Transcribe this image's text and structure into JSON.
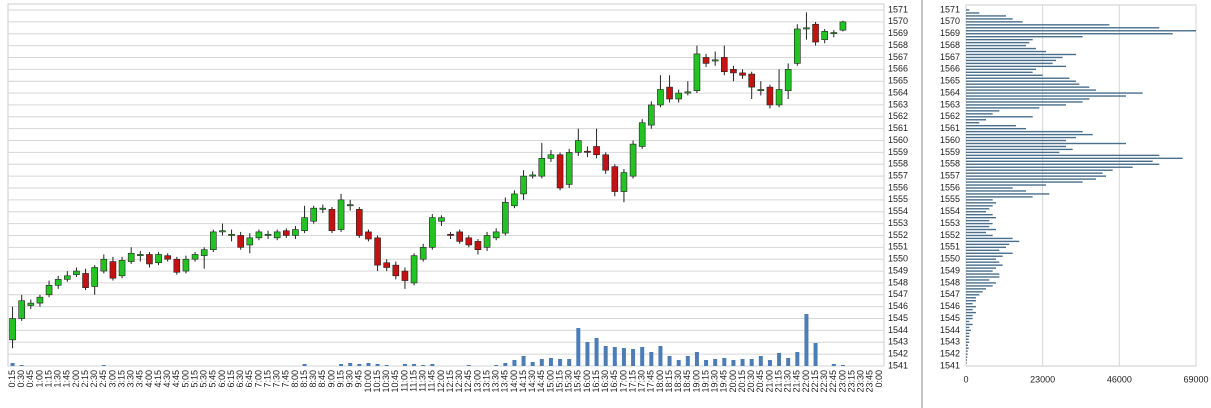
{
  "chart_data": [
    {
      "type": "candlestick",
      "categories": [
        "0:15",
        "0:30",
        "0:45",
        "1:00",
        "1:15",
        "1:30",
        "1:45",
        "2:00",
        "2:15",
        "2:30",
        "2:45",
        "3:00",
        "3:15",
        "3:30",
        "3:45",
        "4:00",
        "4:15",
        "4:30",
        "4:45",
        "5:00",
        "5:15",
        "5:30",
        "5:45",
        "6:00",
        "6:15",
        "6:30",
        "6:45",
        "7:00",
        "7:15",
        "7:30",
        "7:45",
        "8:00",
        "8:15",
        "8:30",
        "8:45",
        "9:00",
        "9:15",
        "9:30",
        "9:45",
        "10:00",
        "10:15",
        "10:30",
        "10:45",
        "11:00",
        "11:15",
        "11:30",
        "11:45",
        "12:00",
        "12:15",
        "12:30",
        "12:45",
        "13:00",
        "13:15",
        "13:30",
        "13:45",
        "14:00",
        "14:15",
        "14:30",
        "14:45",
        "15:00",
        "15:15",
        "15:30",
        "15:45",
        "16:00",
        "16:15",
        "16:30",
        "16:45",
        "17:00",
        "17:15",
        "17:30",
        "17:45",
        "18:00",
        "18:15",
        "18:30",
        "18:45",
        "19:00",
        "19:15",
        "19:30",
        "19:45",
        "20:00",
        "20:15",
        "20:30",
        "20:45",
        "21:00",
        "21:15",
        "21:30",
        "21:45",
        "22:00",
        "22:15",
        "22:30",
        "22:45",
        "23:00",
        "23:15",
        "23:30",
        "23:45",
        "0:00"
      ],
      "open": [
        1543.2,
        1545,
        1546.1,
        1546.3,
        1547,
        1547.8,
        1548.3,
        1548.7,
        1548.8,
        1547.7,
        1549,
        1549.8,
        1548.6,
        1549.8,
        1550.3,
        1550.4,
        1549.7,
        1550.3,
        1550,
        1549,
        1550,
        1550.3,
        1550.8,
        1552.3,
        1552,
        1552,
        1551.2,
        1551.8,
        1552,
        1551.8,
        1552.4,
        1552,
        1552.4,
        1553.2,
        1554.2,
        1554.2,
        1552.5,
        1554.5,
        1554.2,
        1552.3,
        1551.8,
        1549.7,
        1549.5,
        1549,
        1548,
        1550,
        1551,
        1553.2,
        1552.1,
        1552.3,
        1551.8,
        1551.5,
        1551,
        1551.8,
        1552.2,
        1554.5,
        1555.5,
        1557,
        1557,
        1558.5,
        1558.8,
        1556.3,
        1559,
        1559.1,
        1559.5,
        1558.8,
        1557.8,
        1555.7,
        1557,
        1559.5,
        1561.3,
        1563,
        1564.5,
        1563.5,
        1564,
        1564.2,
        1567,
        1566.7,
        1567,
        1566,
        1565.7,
        1565.6,
        1564.2,
        1564.5,
        1563,
        1564.2,
        1566.5,
        1569.4,
        1569.8,
        1568.5,
        1569,
        1569.3,
        null,
        null,
        null,
        null
      ],
      "high": [
        1546,
        1547,
        1546.6,
        1547,
        1548.2,
        1548.6,
        1549,
        1549.3,
        1549.2,
        1549.5,
        1550.4,
        1550.2,
        1550.2,
        1551,
        1550.7,
        1550.6,
        1550.6,
        1550.5,
        1550.2,
        1550.3,
        1550.6,
        1551,
        1552.5,
        1553,
        1552.5,
        1552.3,
        1552.2,
        1552.5,
        1552.4,
        1552.5,
        1552.6,
        1552.8,
        1554.5,
        1554.5,
        1554.6,
        1554.4,
        1555.5,
        1555,
        1554.4,
        1552.5,
        1552,
        1550,
        1549.8,
        1549.3,
        1550.5,
        1551.3,
        1553.8,
        1553.7,
        1552.3,
        1552.5,
        1552,
        1551.7,
        1552.3,
        1552.6,
        1555.2,
        1555.8,
        1557.5,
        1557.4,
        1559.8,
        1559.2,
        1559,
        1559.3,
        1561,
        1559.5,
        1561,
        1559,
        1558,
        1557.6,
        1560,
        1561.8,
        1563.3,
        1565.5,
        1565.5,
        1564.3,
        1565,
        1568,
        1567.3,
        1567.5,
        1568,
        1566.3,
        1566,
        1565.8,
        1565,
        1564.7,
        1566,
        1566.5,
        1569.8,
        1570.8,
        1570,
        1569.4,
        1569.3,
        1570.1,
        null,
        null,
        null,
        null
      ],
      "low": [
        1542.5,
        1544.8,
        1545.8,
        1546,
        1546.8,
        1547.5,
        1548.1,
        1548.5,
        1547.4,
        1547,
        1548.8,
        1548.2,
        1548.4,
        1549.6,
        1549.8,
        1549.3,
        1549.5,
        1549.8,
        1548.7,
        1548.8,
        1549.8,
        1549.2,
        1550.6,
        1552,
        1551.5,
        1550.8,
        1550.5,
        1551.6,
        1551.7,
        1551.6,
        1551.8,
        1551.7,
        1552.2,
        1553,
        1553.9,
        1552.2,
        1552.3,
        1554.1,
        1551.8,
        1551.5,
        1549,
        1549,
        1548.3,
        1547.5,
        1547.8,
        1549.8,
        1550.8,
        1552.8,
        1551.7,
        1551.3,
        1551,
        1550.4,
        1550.7,
        1551.6,
        1552,
        1554.3,
        1555,
        1556.8,
        1556.8,
        1558.2,
        1555.8,
        1556,
        1558.7,
        1558.6,
        1558.5,
        1557.2,
        1555.3,
        1554.8,
        1556.8,
        1559.3,
        1561,
        1562.8,
        1563.2,
        1563.2,
        1563.8,
        1564,
        1566.2,
        1566.3,
        1565.5,
        1565,
        1565.2,
        1563.5,
        1563.8,
        1562.7,
        1562.8,
        1563.5,
        1566.3,
        1568.5,
        1568,
        1568.2,
        1568.7,
        1569.2,
        null,
        null,
        null,
        null
      ],
      "close": [
        1545,
        1546.5,
        1546.3,
        1546.8,
        1547.8,
        1548.3,
        1548.6,
        1549,
        1547.6,
        1549.3,
        1550,
        1548.4,
        1549.9,
        1550.5,
        1550.4,
        1549.6,
        1550.4,
        1550,
        1548.9,
        1550,
        1550.4,
        1550.8,
        1552.3,
        1552.4,
        1552.1,
        1551,
        1551.8,
        1552.3,
        1552.1,
        1552.3,
        1552,
        1552.5,
        1553.5,
        1554.3,
        1554.3,
        1552.4,
        1555,
        1554.6,
        1552,
        1551.7,
        1549.5,
        1549.3,
        1548.6,
        1548.2,
        1550.3,
        1551,
        1553.5,
        1553.5,
        1552,
        1551.5,
        1551.2,
        1550.8,
        1552,
        1552.3,
        1554.8,
        1555.5,
        1557,
        1557.1,
        1558.5,
        1558.8,
        1556,
        1559,
        1560,
        1559,
        1558.8,
        1557.5,
        1555.7,
        1557.3,
        1559.7,
        1561.5,
        1563,
        1564.3,
        1563.5,
        1564,
        1564.1,
        1567.3,
        1566.5,
        1566.8,
        1565.8,
        1565.7,
        1565.5,
        1564.5,
        1564.3,
        1563,
        1564.3,
        1566,
        1569.4,
        1569.5,
        1568.3,
        1569.2,
        1569.1,
        1570,
        null,
        null,
        null,
        null
      ],
      "volume": [
        3,
        1,
        0,
        0,
        0,
        0,
        0,
        0,
        0,
        0,
        1,
        0,
        0,
        0,
        0,
        0,
        0,
        0,
        0,
        0,
        0,
        0,
        0,
        0,
        0,
        0,
        0,
        0,
        0,
        0,
        0,
        0,
        2,
        0,
        0,
        0,
        2,
        3,
        2,
        3,
        2,
        1,
        0,
        2,
        2,
        1,
        2,
        0,
        0,
        0,
        1,
        0,
        0,
        1,
        3,
        6,
        10,
        4,
        7,
        8,
        7,
        7,
        38,
        24,
        28,
        20,
        19,
        18,
        17,
        19,
        14,
        20,
        10,
        6,
        10,
        14,
        6,
        7,
        8,
        6,
        7,
        7,
        10,
        6,
        13,
        8,
        14,
        52,
        23,
        0,
        2,
        1,
        null,
        null,
        null,
        null
      ],
      "vlim": [
        0,
        60
      ],
      "up_color": "#22c322",
      "down_color": "#c41212",
      "volume_color": "#4d7db5",
      "ylim": [
        1541,
        1571
      ],
      "yticks": [
        1541,
        1542,
        1543,
        1544,
        1545,
        1546,
        1547,
        1548,
        1549,
        1550,
        1551,
        1552,
        1553,
        1554,
        1555,
        1556,
        1557,
        1558,
        1559,
        1560,
        1561,
        1562,
        1563,
        1564,
        1565,
        1566,
        1567,
        1568,
        1569,
        1570,
        1571
      ],
      "grid": true
    },
    {
      "type": "profile",
      "levels": [
        1571,
        1570.75,
        1570.5,
        1570.25,
        1570,
        1569.75,
        1569.5,
        1569.25,
        1569,
        1568.75,
        1568.5,
        1568.25,
        1568,
        1567.75,
        1567.5,
        1567.25,
        1567,
        1566.75,
        1566.5,
        1566.25,
        1566,
        1565.75,
        1565.5,
        1565.25,
        1565,
        1564.75,
        1564.5,
        1564.25,
        1564,
        1563.75,
        1563.5,
        1563.25,
        1563,
        1562.75,
        1562.5,
        1562.25,
        1562,
        1561.75,
        1561.5,
        1561.25,
        1561,
        1560.75,
        1560.5,
        1560.25,
        1560,
        1559.75,
        1559.5,
        1559.25,
        1559,
        1558.75,
        1558.5,
        1558.25,
        1558,
        1557.75,
        1557.5,
        1557.25,
        1557,
        1556.75,
        1556.5,
        1556.25,
        1556,
        1555.75,
        1555.5,
        1555.25,
        1555,
        1554.75,
        1554.5,
        1554.25,
        1554,
        1553.75,
        1553.5,
        1553.25,
        1553,
        1552.75,
        1552.5,
        1552.25,
        1552,
        1551.75,
        1551.5,
        1551.25,
        1551,
        1550.75,
        1550.5,
        1550.25,
        1550,
        1549.75,
        1549.5,
        1549.25,
        1549,
        1548.75,
        1548.5,
        1548.25,
        1548,
        1547.75,
        1547.5,
        1547.25,
        1547,
        1546.75,
        1546.5,
        1546.25,
        1546,
        1545.75,
        1545.5,
        1545.25,
        1545,
        1544.75,
        1544.5,
        1544.25,
        1544,
        1543.75,
        1543.5,
        1543.25,
        1543,
        1542.75,
        1542.5,
        1542.25,
        1542,
        1541.75,
        1541.5,
        1541.25
      ],
      "values": [
        1000,
        4000,
        12000,
        14000,
        17000,
        43000,
        58000,
        69000,
        62000,
        35000,
        20000,
        19000,
        18000,
        21000,
        24000,
        33000,
        29000,
        27000,
        26000,
        30000,
        21000,
        20000,
        23000,
        31000,
        33000,
        34000,
        37000,
        39000,
        53000,
        48000,
        37000,
        35000,
        30000,
        22000,
        10000,
        8000,
        20000,
        6000,
        4000,
        15000,
        18000,
        35000,
        38000,
        33000,
        30000,
        48000,
        30000,
        32000,
        28000,
        58000,
        65000,
        56000,
        58000,
        50000,
        44000,
        41000,
        42000,
        39000,
        35000,
        24000,
        14000,
        18000,
        25000,
        20000,
        8000,
        9000,
        8000,
        7000,
        6000,
        8000,
        9000,
        7000,
        8000,
        7000,
        9000,
        6000,
        8000,
        14000,
        16000,
        13000,
        12000,
        10000,
        14000,
        11000,
        9000,
        10000,
        11000,
        9000,
        8000,
        10000,
        10000,
        7000,
        9000,
        8000,
        6000,
        5000,
        4000,
        3000,
        3000,
        2000,
        3000,
        2000,
        3000,
        2000,
        2000,
        1000,
        2000,
        1000,
        1500,
        1000,
        1000,
        800,
        1000,
        600,
        800,
        500,
        500,
        400,
        300,
        200
      ],
      "color": "#4a6f8c",
      "ylim": [
        1541,
        1571
      ],
      "yticks": [
        1541,
        1542,
        1543,
        1544,
        1545,
        1546,
        1547,
        1548,
        1549,
        1550,
        1551,
        1552,
        1553,
        1554,
        1555,
        1556,
        1557,
        1558,
        1559,
        1560,
        1561,
        1562,
        1563,
        1564,
        1565,
        1566,
        1567,
        1568,
        1569,
        1570,
        1571
      ],
      "xlim": [
        0,
        69000
      ],
      "xticks": [
        0,
        23000,
        46000,
        69000
      ],
      "grid": true
    }
  ]
}
